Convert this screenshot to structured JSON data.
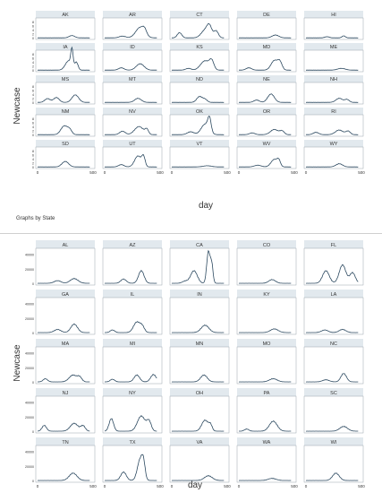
{
  "colors": {
    "panel_header": "#e2e9ee",
    "line": "#2c4960",
    "frame": "#9aa6ae",
    "text": "#333333"
  },
  "chart_data": [
    {
      "type": "line",
      "ylabel": "Newcase",
      "xlabel": "day",
      "note": "Graphs by State",
      "xticks": [
        "0",
        "500"
      ],
      "yticks": [
        "0",
        "2",
        "4",
        "6",
        "8"
      ],
      "xlim": [
        0,
        500
      ],
      "grid": "5 columns x 6 rows",
      "panels": [
        {
          "name": "AK",
          "peaks": [
            [
              310,
              0.8,
              25
            ]
          ]
        },
        {
          "name": "AR",
          "peaks": [
            [
              160,
              0.6,
              30
            ],
            [
              320,
              3.6,
              40
            ],
            [
              360,
              1.5,
              18
            ]
          ]
        },
        {
          "name": "CT",
          "peaks": [
            [
              70,
              1.8,
              20
            ],
            [
              300,
              2.6,
              35
            ],
            [
              340,
              3.4,
              22
            ],
            [
              400,
              2.4,
              20
            ]
          ]
        },
        {
          "name": "DE",
          "peaks": [
            [
              330,
              1.0,
              30
            ]
          ]
        },
        {
          "name": "HI",
          "peaks": [
            [
              190,
              0.4,
              20
            ],
            [
              340,
              0.7,
              15
            ]
          ]
        },
        {
          "name": "IA",
          "peaks": [
            [
              280,
              3.2,
              30
            ],
            [
              310,
              5.8,
              10
            ],
            [
              350,
              2.6,
              15
            ]
          ]
        },
        {
          "name": "ID",
          "peaks": [
            [
              150,
              0.8,
              25
            ],
            [
              320,
              2.2,
              35
            ]
          ]
        },
        {
          "name": "KS",
          "peaks": [
            [
              150,
              0.6,
              25
            ],
            [
              300,
              3.2,
              40
            ],
            [
              360,
              2.8,
              20
            ]
          ]
        },
        {
          "name": "MD",
          "peaks": [
            [
              90,
              0.8,
              25
            ],
            [
              320,
              3.3,
              30
            ],
            [
              370,
              2.6,
              20
            ]
          ]
        },
        {
          "name": "ME",
          "peaks": [
            [
              320,
              0.6,
              35
            ]
          ]
        },
        {
          "name": "MS",
          "peaks": [
            [
              90,
              1.3,
              25
            ],
            [
              170,
              1.7,
              25
            ],
            [
              340,
              2.6,
              30
            ]
          ]
        },
        {
          "name": "MT",
          "peaks": [
            [
              300,
              1.4,
              30
            ]
          ]
        },
        {
          "name": "ND",
          "peaks": [
            [
              250,
              2.0,
              25
            ],
            [
              300,
              1.0,
              20
            ]
          ]
        },
        {
          "name": "NE",
          "peaks": [
            [
              160,
              0.8,
              25
            ],
            [
              290,
              2.9,
              30
            ]
          ]
        },
        {
          "name": "NH",
          "peaks": [
            [
              300,
              1.4,
              30
            ],
            [
              370,
              1.0,
              20
            ]
          ]
        },
        {
          "name": "NM",
          "peaks": [
            [
              240,
              3.0,
              30
            ],
            [
              290,
              1.5,
              20
            ]
          ]
        },
        {
          "name": "NV",
          "peaks": [
            [
              160,
              1.2,
              25
            ],
            [
              310,
              2.8,
              40
            ],
            [
              380,
              1.6,
              15
            ]
          ]
        },
        {
          "name": "OK",
          "peaks": [
            [
              170,
              1.0,
              30
            ],
            [
              300,
              3.6,
              35
            ],
            [
              340,
              4.5,
              15
            ]
          ]
        },
        {
          "name": "OR",
          "peaks": [
            [
              120,
              0.6,
              25
            ],
            [
              320,
              1.8,
              35
            ],
            [
              390,
              1.2,
              20
            ]
          ]
        },
        {
          "name": "RI",
          "peaks": [
            [
              90,
              0.8,
              25
            ],
            [
              300,
              1.6,
              35
            ],
            [
              380,
              1.2,
              20
            ]
          ]
        },
        {
          "name": "SD",
          "peaks": [
            [
              250,
              1.9,
              30
            ]
          ]
        },
        {
          "name": "UT",
          "peaks": [
            [
              150,
              0.8,
              25
            ],
            [
              300,
              3.8,
              30
            ],
            [
              350,
              3.2,
              15
            ]
          ]
        },
        {
          "name": "VT",
          "peaks": [
            [
              320,
              0.4,
              40
            ]
          ]
        },
        {
          "name": "WV",
          "peaks": [
            [
              170,
              0.6,
              30
            ],
            [
              320,
              2.6,
              30
            ],
            [
              360,
              1.8,
              15
            ]
          ]
        },
        {
          "name": "WY",
          "peaks": [
            [
              300,
              1.1,
              30
            ]
          ]
        }
      ]
    },
    {
      "type": "line",
      "ylabel": "Newcase",
      "xlabel": "day",
      "xticks": [
        "0",
        "500"
      ],
      "yticks": [
        "0",
        "20000",
        "40000"
      ],
      "xlim": [
        0,
        500
      ],
      "grid": "5 columns x 5 rows",
      "panels": [
        {
          "name": "AL",
          "peaks": [
            [
              180,
              0.5,
              30
            ],
            [
              330,
              0.9,
              35
            ]
          ]
        },
        {
          "name": "AZ",
          "peaks": [
            [
              170,
              0.8,
              25
            ],
            [
              330,
              2.4,
              25
            ]
          ]
        },
        {
          "name": "CA",
          "peaks": [
            [
              120,
              0.4,
              25
            ],
            [
              200,
              2.4,
              30
            ],
            [
              330,
              6.0,
              15
            ],
            [
              360,
              3.5,
              12
            ]
          ]
        },
        {
          "name": "CO",
          "peaks": [
            [
              300,
              0.7,
              30
            ]
          ]
        },
        {
          "name": "FL",
          "peaks": [
            [
              180,
              2.4,
              30
            ],
            [
              330,
              3.5,
              30
            ],
            [
              420,
              2.0,
              25
            ]
          ]
        },
        {
          "name": "GA",
          "peaks": [
            [
              180,
              0.6,
              30
            ],
            [
              330,
              1.6,
              30
            ]
          ]
        },
        {
          "name": "IL",
          "peaks": [
            [
              70,
              0.5,
              20
            ],
            [
              290,
              2.0,
              30
            ],
            [
              340,
              1.0,
              20
            ]
          ]
        },
        {
          "name": "IN",
          "peaks": [
            [
              300,
              1.4,
              35
            ]
          ]
        },
        {
          "name": "KY",
          "peaks": [
            [
              320,
              0.7,
              35
            ]
          ]
        },
        {
          "name": "LA",
          "peaks": [
            [
              170,
              0.5,
              30
            ],
            [
              330,
              0.6,
              30
            ]
          ]
        },
        {
          "name": "MA",
          "peaks": [
            [
              70,
              0.6,
              20
            ],
            [
              320,
              1.3,
              35
            ],
            [
              380,
              0.8,
              20
            ]
          ]
        },
        {
          "name": "MI",
          "peaks": [
            [
              70,
              0.5,
              20
            ],
            [
              290,
              1.3,
              25
            ],
            [
              440,
              1.4,
              25
            ]
          ]
        },
        {
          "name": "MN",
          "peaks": [
            [
              290,
              1.3,
              30
            ]
          ]
        },
        {
          "name": "MO",
          "peaks": [
            [
              310,
              0.6,
              35
            ]
          ]
        },
        {
          "name": "NC",
          "peaks": [
            [
              180,
              0.4,
              30
            ],
            [
              340,
              1.6,
              25
            ]
          ]
        },
        {
          "name": "NJ",
          "peaks": [
            [
              60,
              1.1,
              20
            ],
            [
              330,
              1.5,
              35
            ],
            [
              410,
              1.0,
              20
            ]
          ]
        },
        {
          "name": "NY",
          "peaks": [
            [
              60,
              2.4,
              20
            ],
            [
              330,
              2.9,
              35
            ],
            [
              400,
              1.8,
              20
            ]
          ]
        },
        {
          "name": "OH",
          "peaks": [
            [
              300,
              2.1,
              30
            ],
            [
              350,
              1.0,
              15
            ]
          ]
        },
        {
          "name": "PA",
          "peaks": [
            [
              70,
              0.4,
              20
            ],
            [
              310,
              1.9,
              35
            ]
          ]
        },
        {
          "name": "SC",
          "peaks": [
            [
              340,
              0.9,
              35
            ]
          ]
        },
        {
          "name": "TN",
          "peaks": [
            [
              320,
              1.4,
              35
            ]
          ]
        },
        {
          "name": "TX",
          "peaks": [
            [
              170,
              1.6,
              25
            ],
            [
              320,
              4.0,
              25
            ],
            [
              350,
              2.6,
              15
            ]
          ]
        },
        {
          "name": "VA",
          "peaks": [
            [
              330,
              0.9,
              35
            ]
          ]
        },
        {
          "name": "WA",
          "peaks": [
            [
              300,
              0.4,
              35
            ]
          ]
        },
        {
          "name": "WI",
          "peaks": [
            [
              270,
              1.4,
              30
            ]
          ]
        }
      ]
    }
  ]
}
